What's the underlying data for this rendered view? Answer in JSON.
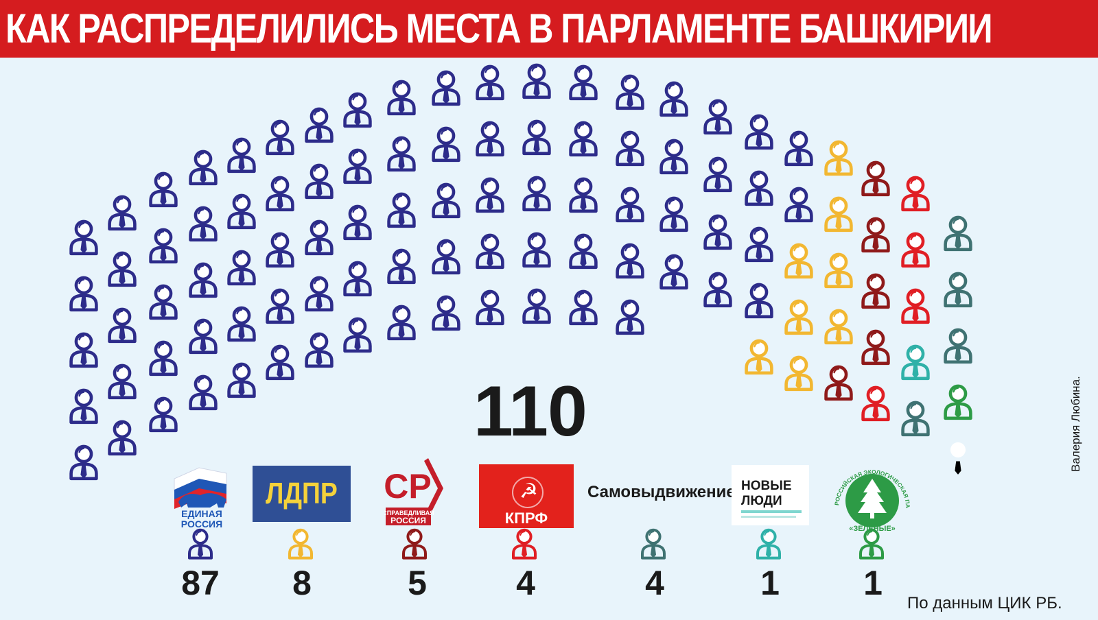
{
  "title": "КАК РАСПРЕДЕЛИЛИСЬ МЕСТА В ПАРЛАМЕНТЕ БАШКИРИИ",
  "total_seats": "110",
  "credit": "Валерия Любина.",
  "source": "По данным ЦИК РБ.",
  "colors": {
    "title_bar": "#d51c1f",
    "background": "#e8f4fb",
    "er": "#2d2c8a",
    "ldpr": "#f2b731",
    "sr": "#8f1a1a",
    "kprf": "#e01e24",
    "samo": "#3f7272",
    "nl": "#2fb1a8",
    "green": "#2d9b46"
  },
  "chart_data": {
    "type": "parliament",
    "total": 110,
    "parties": [
      {
        "key": "er",
        "logo_text": [
          "ЕДИНАЯ",
          "РОССИЯ"
        ],
        "seats": 87,
        "count": "87",
        "color": "#2d2c8a",
        "icon": "bear-flag-logo-icon"
      },
      {
        "key": "ldpr",
        "logo_text": [
          "ЛДПР"
        ],
        "seats": 8,
        "count": "8",
        "color": "#f2b731",
        "icon": "ldpr-logo-icon"
      },
      {
        "key": "sr",
        "logo_text": [
          "СР",
          "СПРАВЕДЛИВАЯ",
          "РОССИЯ"
        ],
        "seats": 5,
        "count": "5",
        "color": "#8f1a1a",
        "icon": "sr-logo-icon"
      },
      {
        "key": "kprf",
        "logo_text": [
          "КПРФ"
        ],
        "seats": 4,
        "count": "4",
        "color": "#e01e24",
        "icon": "hammer-sickle-icon"
      },
      {
        "key": "samo",
        "logo_text": [
          "Самовыдвижение"
        ],
        "seats": 4,
        "count": "4",
        "color": "#3f7272",
        "icon": "person-icon"
      },
      {
        "key": "nl",
        "logo_text": [
          "НОВЫЕ",
          "ЛЮДИ"
        ],
        "seats": 1,
        "count": "1",
        "color": "#2fb1a8",
        "icon": "nl-logo-icon"
      },
      {
        "key": "green",
        "logo_text": [
          "РОССИЙСКАЯ ЭКОЛОГИЧЕСКАЯ ПАРТИЯ",
          "«ЗЕЛЁНЫЕ»"
        ],
        "seats": 1,
        "count": "1",
        "color": "#2d9b46",
        "icon": "tree-icon"
      }
    ],
    "seat_sequence": [
      "er",
      "er",
      "er",
      "er",
      "er",
      "er",
      "er",
      "er",
      "er",
      "er",
      "er",
      "er",
      "er",
      "er",
      "er",
      "er",
      "er",
      "er",
      "er",
      "er",
      "er",
      "er",
      "er",
      "er",
      "er",
      "er",
      "er",
      "er",
      "er",
      "er",
      "er",
      "er",
      "er",
      "er",
      "er",
      "er",
      "er",
      "er",
      "er",
      "er",
      "er",
      "er",
      "er",
      "er",
      "er",
      "er",
      "er",
      "er",
      "er",
      "er",
      "er",
      "er",
      "er",
      "er",
      "er",
      "er",
      "er",
      "er",
      "er",
      "er",
      "er",
      "er",
      "er",
      "er",
      "er",
      "er",
      "er",
      "er",
      "er",
      "er",
      "er",
      "er",
      "er",
      "er",
      "er",
      "er",
      "er",
      "er",
      "er",
      "er",
      "er",
      "er",
      "ldpr",
      "er",
      "er",
      "ldpr",
      "ldpr",
      "ldpr",
      "ldpr",
      "ldpr",
      "ldpr",
      "ldpr",
      "sr",
      "sr",
      "sr",
      "sr",
      "sr",
      "kprf",
      "kprf",
      "kprf",
      "kprf",
      "nl",
      "samo",
      "samo",
      "samo",
      "samo",
      "green"
    ]
  }
}
